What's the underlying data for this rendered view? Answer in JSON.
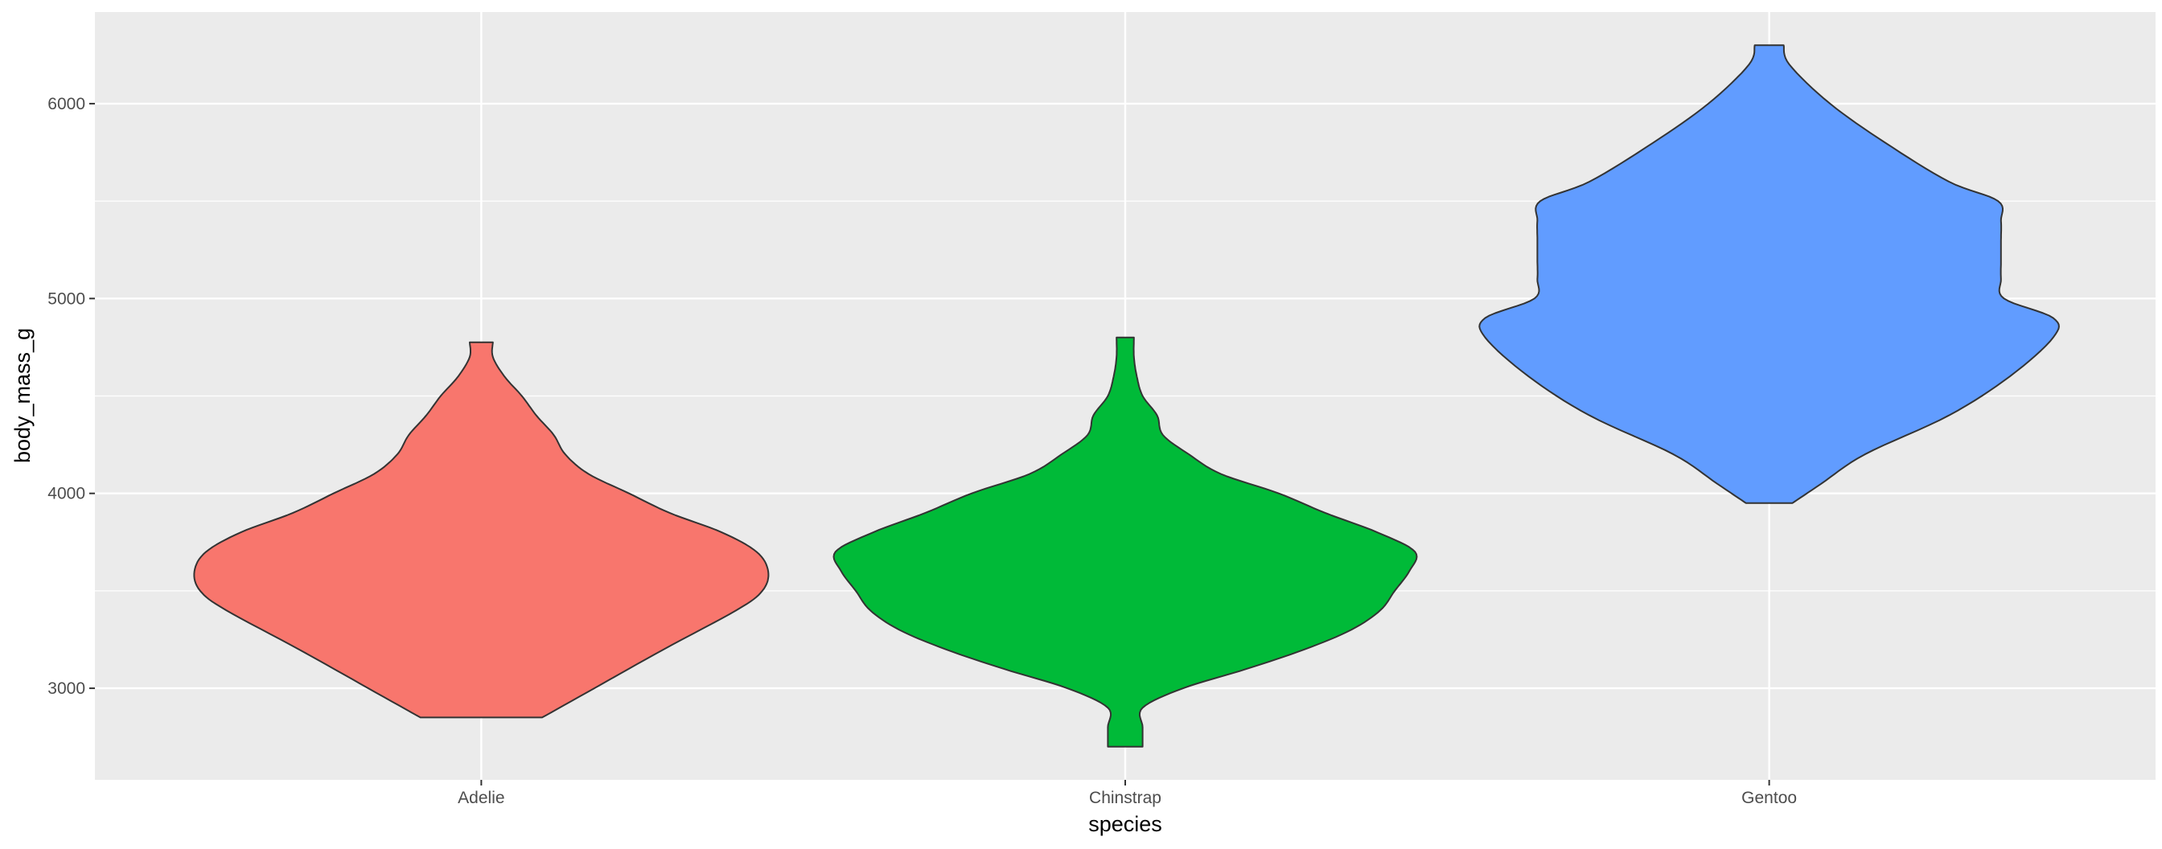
{
  "chart_data": {
    "type": "violin",
    "xlabel": "species",
    "ylabel": "body_mass_g",
    "categories": [
      "Adelie",
      "Chinstrap",
      "Gentoo"
    ],
    "ylim": [
      2530,
      6470
    ],
    "yticks": [
      3000,
      4000,
      5000,
      6000
    ],
    "grid": true,
    "legend": "none",
    "colors": {
      "panel_background": "#EBEBEB",
      "grid_major": "#FFFFFF",
      "outline": "#333333",
      "Adelie": "#F8766D",
      "Chinstrap": "#00BA38",
      "Gentoo": "#619CFF"
    },
    "series": [
      {
        "category": "Adelie",
        "min": 2850,
        "max": 4775,
        "density_profile": [
          [
            2850,
            0.21
          ],
          [
            3000,
            0.39
          ],
          [
            3200,
            0.63
          ],
          [
            3400,
            0.88
          ],
          [
            3500,
            0.97
          ],
          [
            3600,
            0.99
          ],
          [
            3700,
            0.95
          ],
          [
            3800,
            0.83
          ],
          [
            3900,
            0.65
          ],
          [
            4000,
            0.51
          ],
          [
            4100,
            0.37
          ],
          [
            4200,
            0.29
          ],
          [
            4300,
            0.25
          ],
          [
            4400,
            0.19
          ],
          [
            4500,
            0.14
          ],
          [
            4600,
            0.08
          ],
          [
            4700,
            0.04
          ],
          [
            4775,
            0.04
          ]
        ]
      },
      {
        "category": "Chinstrap",
        "min": 2700,
        "max": 4800,
        "density_profile": [
          [
            2700,
            0.06
          ],
          [
            2800,
            0.06
          ],
          [
            2900,
            0.06
          ],
          [
            3000,
            0.2
          ],
          [
            3100,
            0.42
          ],
          [
            3200,
            0.62
          ],
          [
            3300,
            0.78
          ],
          [
            3400,
            0.88
          ],
          [
            3500,
            0.93
          ],
          [
            3600,
            0.98
          ],
          [
            3700,
            1.0
          ],
          [
            3800,
            0.87
          ],
          [
            3900,
            0.69
          ],
          [
            4000,
            0.53
          ],
          [
            4100,
            0.33
          ],
          [
            4200,
            0.22
          ],
          [
            4300,
            0.13
          ],
          [
            4400,
            0.11
          ],
          [
            4500,
            0.06
          ],
          [
            4600,
            0.04
          ],
          [
            4700,
            0.03
          ],
          [
            4800,
            0.03
          ]
        ]
      },
      {
        "category": "Gentoo",
        "min": 3950,
        "max": 6300,
        "density_profile": [
          [
            3950,
            0.08
          ],
          [
            4050,
            0.18
          ],
          [
            4200,
            0.33
          ],
          [
            4400,
            0.62
          ],
          [
            4600,
            0.83
          ],
          [
            4800,
            0.98
          ],
          [
            4900,
            0.98
          ],
          [
            5000,
            0.81
          ],
          [
            5100,
            0.8
          ],
          [
            5200,
            0.8
          ],
          [
            5300,
            0.8
          ],
          [
            5400,
            0.8
          ],
          [
            5500,
            0.79
          ],
          [
            5600,
            0.62
          ],
          [
            5800,
            0.4
          ],
          [
            6000,
            0.21
          ],
          [
            6200,
            0.07
          ],
          [
            6300,
            0.05
          ]
        ]
      }
    ]
  }
}
